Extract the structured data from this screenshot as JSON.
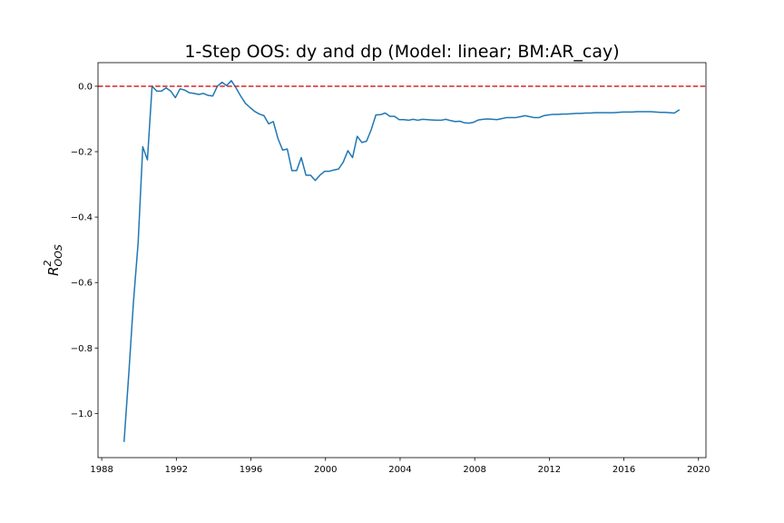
{
  "chart_data": {
    "type": "line",
    "title": "1-Step OOS: dy and dp (Model: linear; BM:AR_cay)",
    "ylabel": "R",
    "ylabel_sup": "2",
    "ylabel_sub": "OOS",
    "xlabel": "",
    "xlim": [
      1987.8,
      2020.4
    ],
    "ylim": [
      -1.135,
      0.072
    ],
    "x_ticks": [
      1988,
      1992,
      1996,
      2000,
      2004,
      2008,
      2012,
      2016,
      2020
    ],
    "x_tick_labels": [
      "1988",
      "1992",
      "1996",
      "2000",
      "2004",
      "2008",
      "2012",
      "2016",
      "2020"
    ],
    "y_ticks": [
      0.0,
      -0.2,
      -0.4,
      -0.6,
      -0.8,
      -1.0
    ],
    "y_tick_labels": [
      "0.0",
      "−0.2",
      "−0.4",
      "−0.6",
      "−0.8",
      "−1.0"
    ],
    "reference_line": {
      "y": 0.0,
      "color": "#d62728",
      "style": "dashed"
    },
    "series": [
      {
        "color": "#1f77b4",
        "points": [
          [
            1989.2,
            -1.085
          ],
          [
            1989.45,
            -0.88
          ],
          [
            1989.7,
            -0.66
          ],
          [
            1989.95,
            -0.48
          ],
          [
            1990.2,
            -0.185
          ],
          [
            1990.45,
            -0.225
          ],
          [
            1990.7,
            0.0
          ],
          [
            1990.95,
            -0.015
          ],
          [
            1991.2,
            -0.015
          ],
          [
            1991.45,
            -0.005
          ],
          [
            1991.7,
            -0.015
          ],
          [
            1991.95,
            -0.035
          ],
          [
            1992.2,
            -0.008
          ],
          [
            1992.45,
            -0.012
          ],
          [
            1992.7,
            -0.02
          ],
          [
            1992.95,
            -0.022
          ],
          [
            1993.2,
            -0.025
          ],
          [
            1993.45,
            -0.022
          ],
          [
            1993.7,
            -0.028
          ],
          [
            1993.95,
            -0.03
          ],
          [
            1994.2,
            0.0
          ],
          [
            1994.45,
            0.012
          ],
          [
            1994.7,
            0.002
          ],
          [
            1994.95,
            0.017
          ],
          [
            1995.2,
            -0.005
          ],
          [
            1995.45,
            -0.03
          ],
          [
            1995.7,
            -0.052
          ],
          [
            1995.95,
            -0.065
          ],
          [
            1996.2,
            -0.077
          ],
          [
            1996.45,
            -0.085
          ],
          [
            1996.7,
            -0.09
          ],
          [
            1996.95,
            -0.115
          ],
          [
            1997.2,
            -0.108
          ],
          [
            1997.45,
            -0.16
          ],
          [
            1997.7,
            -0.195
          ],
          [
            1997.95,
            -0.192
          ],
          [
            1998.2,
            -0.258
          ],
          [
            1998.45,
            -0.258
          ],
          [
            1998.7,
            -0.218
          ],
          [
            1998.95,
            -0.272
          ],
          [
            1999.2,
            -0.272
          ],
          [
            1999.45,
            -0.288
          ],
          [
            1999.7,
            -0.272
          ],
          [
            1999.95,
            -0.26
          ],
          [
            2000.2,
            -0.26
          ],
          [
            2000.45,
            -0.256
          ],
          [
            2000.7,
            -0.253
          ],
          [
            2000.95,
            -0.232
          ],
          [
            2001.2,
            -0.197
          ],
          [
            2001.45,
            -0.218
          ],
          [
            2001.7,
            -0.153
          ],
          [
            2001.95,
            -0.172
          ],
          [
            2002.2,
            -0.168
          ],
          [
            2002.45,
            -0.133
          ],
          [
            2002.7,
            -0.088
          ],
          [
            2002.95,
            -0.087
          ],
          [
            2003.2,
            -0.082
          ],
          [
            2003.45,
            -0.092
          ],
          [
            2003.7,
            -0.092
          ],
          [
            2003.95,
            -0.102
          ],
          [
            2004.2,
            -0.102
          ],
          [
            2004.45,
            -0.104
          ],
          [
            2004.7,
            -0.101
          ],
          [
            2004.95,
            -0.104
          ],
          [
            2005.2,
            -0.101
          ],
          [
            2005.45,
            -0.102
          ],
          [
            2005.7,
            -0.103
          ],
          [
            2005.95,
            -0.104
          ],
          [
            2006.2,
            -0.104
          ],
          [
            2006.45,
            -0.101
          ],
          [
            2006.7,
            -0.105
          ],
          [
            2006.95,
            -0.108
          ],
          [
            2007.2,
            -0.107
          ],
          [
            2007.45,
            -0.112
          ],
          [
            2007.7,
            -0.113
          ],
          [
            2007.95,
            -0.11
          ],
          [
            2008.2,
            -0.103
          ],
          [
            2008.45,
            -0.101
          ],
          [
            2008.7,
            -0.1
          ],
          [
            2008.95,
            -0.101
          ],
          [
            2009.2,
            -0.102
          ],
          [
            2009.45,
            -0.099
          ],
          [
            2009.7,
            -0.096
          ],
          [
            2009.95,
            -0.096
          ],
          [
            2010.2,
            -0.096
          ],
          [
            2010.45,
            -0.093
          ],
          [
            2010.7,
            -0.09
          ],
          [
            2010.95,
            -0.093
          ],
          [
            2011.2,
            -0.096
          ],
          [
            2011.45,
            -0.096
          ],
          [
            2011.7,
            -0.09
          ],
          [
            2011.95,
            -0.088
          ],
          [
            2012.2,
            -0.086
          ],
          [
            2012.45,
            -0.086
          ],
          [
            2012.7,
            -0.085
          ],
          [
            2012.95,
            -0.085
          ],
          [
            2013.2,
            -0.084
          ],
          [
            2013.45,
            -0.083
          ],
          [
            2013.7,
            -0.083
          ],
          [
            2013.95,
            -0.082
          ],
          [
            2014.2,
            -0.082
          ],
          [
            2014.45,
            -0.081
          ],
          [
            2014.7,
            -0.081
          ],
          [
            2014.95,
            -0.081
          ],
          [
            2015.2,
            -0.081
          ],
          [
            2015.45,
            -0.081
          ],
          [
            2015.7,
            -0.08
          ],
          [
            2015.95,
            -0.079
          ],
          [
            2016.2,
            -0.079
          ],
          [
            2016.45,
            -0.079
          ],
          [
            2016.7,
            -0.078
          ],
          [
            2016.95,
            -0.078
          ],
          [
            2017.2,
            -0.078
          ],
          [
            2017.45,
            -0.078
          ],
          [
            2017.7,
            -0.079
          ],
          [
            2017.95,
            -0.08
          ],
          [
            2018.2,
            -0.08
          ],
          [
            2018.45,
            -0.081
          ],
          [
            2018.7,
            -0.082
          ],
          [
            2018.95,
            -0.073
          ]
        ]
      }
    ],
    "grid": false,
    "legend": "none"
  }
}
